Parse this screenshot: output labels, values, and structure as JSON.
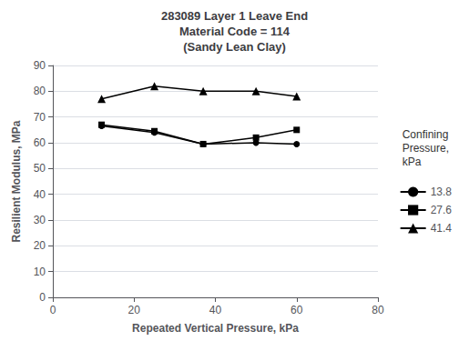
{
  "chart_data": {
    "type": "line",
    "title": "283089 Layer 1 Leave End\nMaterial Code = 114\n(Sandy Lean Clay)",
    "x_label": "Repeated Vertical Pressure, kPa",
    "y_label": "Resilient Modulus, MPa",
    "annotation": "Confining\nPressure,\nkPa",
    "x": [
      12,
      25,
      37,
      50,
      60
    ],
    "series": [
      {
        "name": "13.8",
        "color": "#000000",
        "marker": "circle",
        "values": [
          66.5,
          64.0,
          59.5,
          60.0,
          59.5
        ]
      },
      {
        "name": "27.6",
        "color": "#000000",
        "marker": "square",
        "values": [
          67.0,
          64.5,
          59.5,
          62.0,
          65.0
        ]
      },
      {
        "name": "41.4",
        "color": "#000000",
        "marker": "triangle",
        "values": [
          77.0,
          82.0,
          80.0,
          80.0,
          78.0
        ]
      }
    ],
    "xlim": [
      0,
      80
    ],
    "xticks": [
      0,
      20,
      40,
      60,
      80
    ],
    "ylim": [
      0,
      90
    ],
    "yticks": [
      0,
      10,
      20,
      30,
      40,
      50,
      60,
      70,
      80,
      90
    ],
    "grid": true,
    "legend": "right"
  }
}
